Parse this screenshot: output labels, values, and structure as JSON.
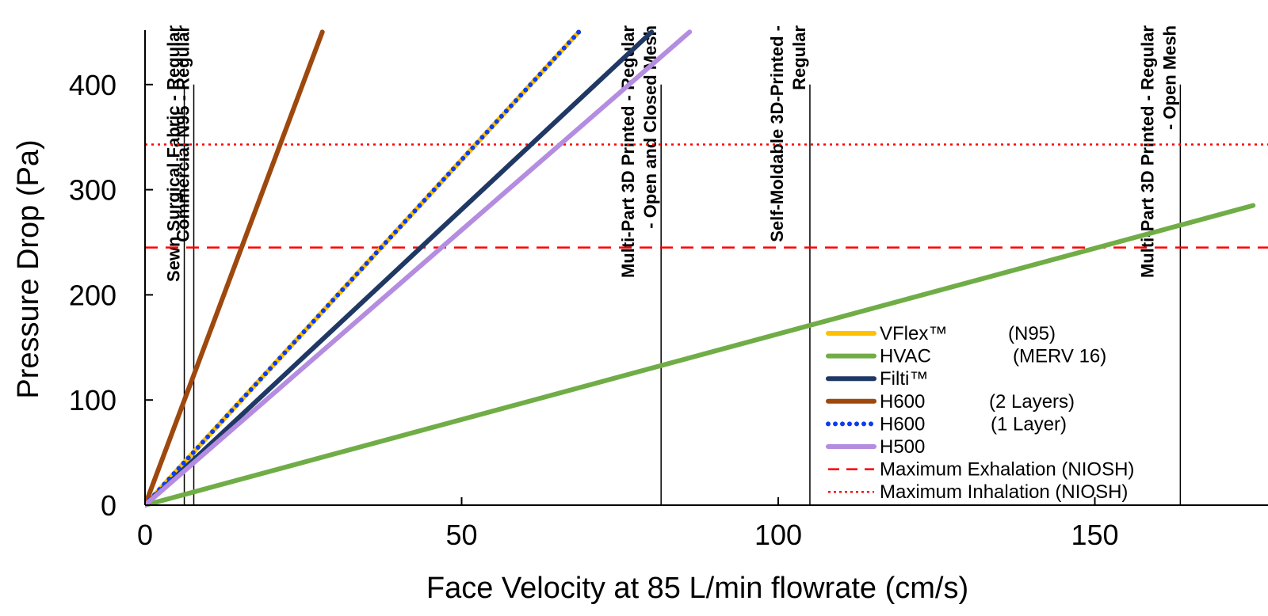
{
  "chart_data": {
    "type": "line",
    "title": "",
    "xlabel": "Face Velocity at 85 L/min flowrate (cm/s)",
    "ylabel": "Pressure Drop (Pa)",
    "xlim": [
      0,
      175
    ],
    "ylim": [
      0,
      450
    ],
    "x_ticks": [
      0,
      50,
      100,
      150
    ],
    "y_ticks": [
      0,
      100,
      200,
      300,
      400
    ],
    "grid": false,
    "legend_position": "lower-right",
    "series": [
      {
        "name": "VFlex™",
        "note": "(N95)",
        "color": "#ffc000",
        "style": "solid",
        "width": 6,
        "x": [
          0,
          68.5
        ],
        "y": [
          0,
          450
        ]
      },
      {
        "name": "HVAC",
        "note": "(MERV 16)",
        "color": "#70ad47",
        "style": "solid",
        "width": 6,
        "x": [
          0,
          175
        ],
        "y": [
          0,
          285
        ]
      },
      {
        "name": "Filti™",
        "note": "",
        "color": "#1f3864",
        "style": "solid",
        "width": 6,
        "x": [
          0,
          80
        ],
        "y": [
          0,
          450
        ]
      },
      {
        "name": "H600",
        "note": "(2 Layers)",
        "color": "#9e480e",
        "style": "solid",
        "width": 6,
        "x": [
          0,
          28
        ],
        "y": [
          0,
          450
        ]
      },
      {
        "name": "H600",
        "note": "(1 Layer)",
        "color": "#0b3cf0",
        "style": "dotted",
        "width": 5,
        "x": [
          0,
          68.5
        ],
        "y": [
          0,
          450
        ]
      },
      {
        "name": "H500",
        "note": "",
        "color": "#b48ce0",
        "style": "solid",
        "width": 6,
        "x": [
          0,
          86
        ],
        "y": [
          0,
          450
        ]
      }
    ],
    "reference_lines": [
      {
        "name": "Maximum Exhalation (NIOSH)",
        "y": 245,
        "color": "#ff0000",
        "style": "dashed"
      },
      {
        "name": "Maximum Inhalation (NIOSH)",
        "y": 343,
        "color": "#ff0000",
        "style": "dotted"
      }
    ],
    "vertical_markers": [
      {
        "x": 6.2,
        "ytop": 400,
        "label_lines": [
          "Sewn Surgical Fabric  - Regular"
        ]
      },
      {
        "x": 7.7,
        "ytop": 400,
        "label_lines": [
          "Commercial N95  - Regular"
        ]
      },
      {
        "x": 81.5,
        "ytop": 400,
        "label_lines": [
          "Multi-Part 3D Printed  - Regular",
          "- Open and Closed Mesh"
        ]
      },
      {
        "x": 105,
        "ytop": 400,
        "label_lines": [
          "Self-Moldable 3D-Printed -",
          "Regular"
        ]
      },
      {
        "x": 163.5,
        "ytop": 400,
        "label_lines": [
          "Multi-Part 3D Printed  - Regular",
          "- Open Mesh"
        ]
      }
    ]
  }
}
